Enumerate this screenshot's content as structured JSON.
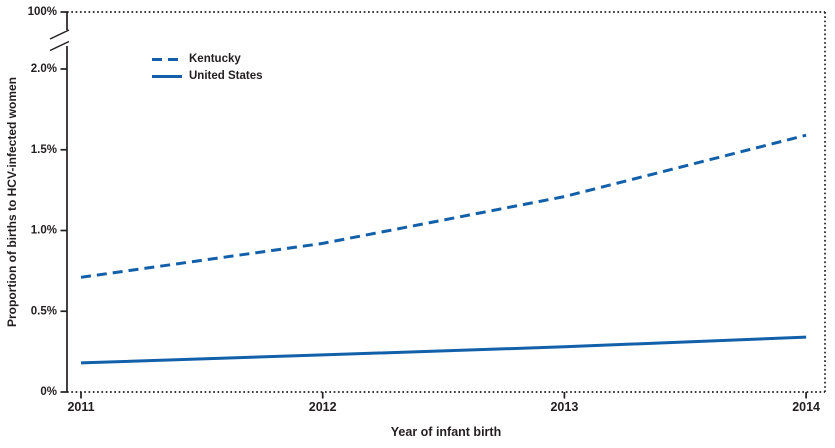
{
  "chart_data": {
    "type": "line",
    "title": "",
    "xlabel": "Year of infant birth",
    "ylabel": "Proportion of births to HCV-infected women",
    "x": [
      "2011",
      "2012",
      "2013",
      "2014"
    ],
    "series": [
      {
        "name": "Kentucky",
        "style": "dashed",
        "values_pct": [
          0.71,
          0.92,
          1.21,
          1.59
        ]
      },
      {
        "name": "United States",
        "style": "solid",
        "values_pct": [
          0.18,
          0.23,
          0.28,
          0.34
        ]
      }
    ],
    "y_ticks": [
      {
        "label": "0%",
        "value": 0
      },
      {
        "label": "0.5%",
        "value": 0.5
      },
      {
        "label": "1.0%",
        "value": 1.0
      },
      {
        "label": "1.5%",
        "value": 1.5
      },
      {
        "label": "2.0%",
        "value": 2.0
      }
    ],
    "y_axis_break": true,
    "y_axis_top_label": "100%",
    "ylim": [
      0,
      2.35
    ],
    "grid": false,
    "legend_position": "top-left-inside",
    "colors": {
      "line": "#1260A9",
      "axis": "#231F20"
    }
  }
}
